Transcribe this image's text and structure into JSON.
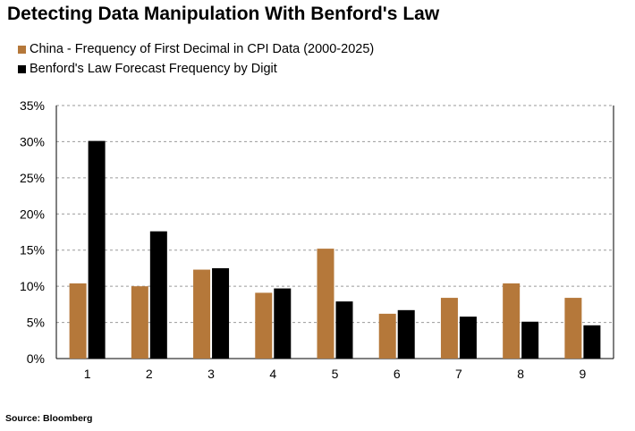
{
  "title": "Detecting Data Manipulation With Benford's Law",
  "source": "Source: Bloomberg",
  "colors": {
    "china": "#b5783a",
    "benford": "#000000",
    "grid": "#9a9a9a"
  },
  "chart_data": {
    "type": "bar",
    "title": "Detecting Data Manipulation With Benford's Law",
    "xlabel": "",
    "ylabel": "",
    "categories": [
      "1",
      "2",
      "3",
      "4",
      "5",
      "6",
      "7",
      "8",
      "9"
    ],
    "series": [
      {
        "name": "China - Frequency of First Decimal in CPI Data (2000-2025)",
        "values": [
          10.4,
          10.0,
          12.3,
          9.1,
          15.2,
          6.2,
          8.4,
          10.4,
          8.4
        ]
      },
      {
        "name": "Benford's Law Forecast Frequency by Digit",
        "values": [
          30.1,
          17.6,
          12.5,
          9.7,
          7.9,
          6.7,
          5.8,
          5.1,
          4.6
        ]
      }
    ],
    "ylim": [
      0,
      35
    ],
    "yticks": [
      "0%",
      "5%",
      "10%",
      "15%",
      "20%",
      "25%",
      "30%",
      "35%"
    ],
    "grid": true,
    "legend_position": "top-left"
  }
}
